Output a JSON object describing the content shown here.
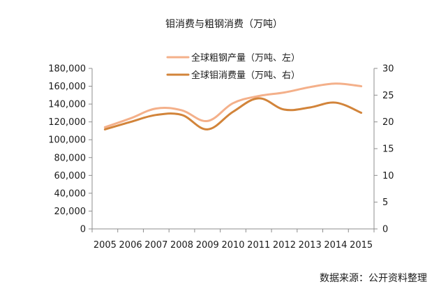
{
  "chart_data": {
    "type": "line",
    "title": "钼消费与粗钢消费（万吨）",
    "categories": [
      "2005",
      "2006",
      "2007",
      "2008",
      "2009",
      "2010",
      "2011",
      "2012",
      "2013",
      "2014",
      "2015"
    ],
    "left_axis": {
      "min": 0,
      "max": 180000,
      "step": 20000,
      "tick_labels": [
        "0",
        "20,000",
        "40,000",
        "60,000",
        "80,000",
        "100,000",
        "120,000",
        "140,000",
        "160,000",
        "180,000"
      ]
    },
    "right_axis": {
      "min": 0,
      "max": 30,
      "step": 5,
      "tick_labels": [
        "0",
        "5",
        "10",
        "15",
        "20",
        "25",
        "30"
      ]
    },
    "legend_position": "top",
    "grid": false,
    "series": [
      {
        "name": "全球粗钢产量（万吨、左）",
        "axis": "left",
        "color": "#F4B08A",
        "values": [
          114000,
          124000,
          135000,
          133000,
          121000,
          141000,
          149000,
          153000,
          159000,
          163000,
          160000
        ]
      },
      {
        "name": "全球钼消费量（万吨、右）",
        "axis": "right",
        "color": "#D2843A",
        "values": [
          18.6,
          20.0,
          21.3,
          21.3,
          18.6,
          21.9,
          24.4,
          22.3,
          22.7,
          23.6,
          21.7
        ]
      }
    ]
  },
  "source_text": "数据来源：公开资料整理"
}
